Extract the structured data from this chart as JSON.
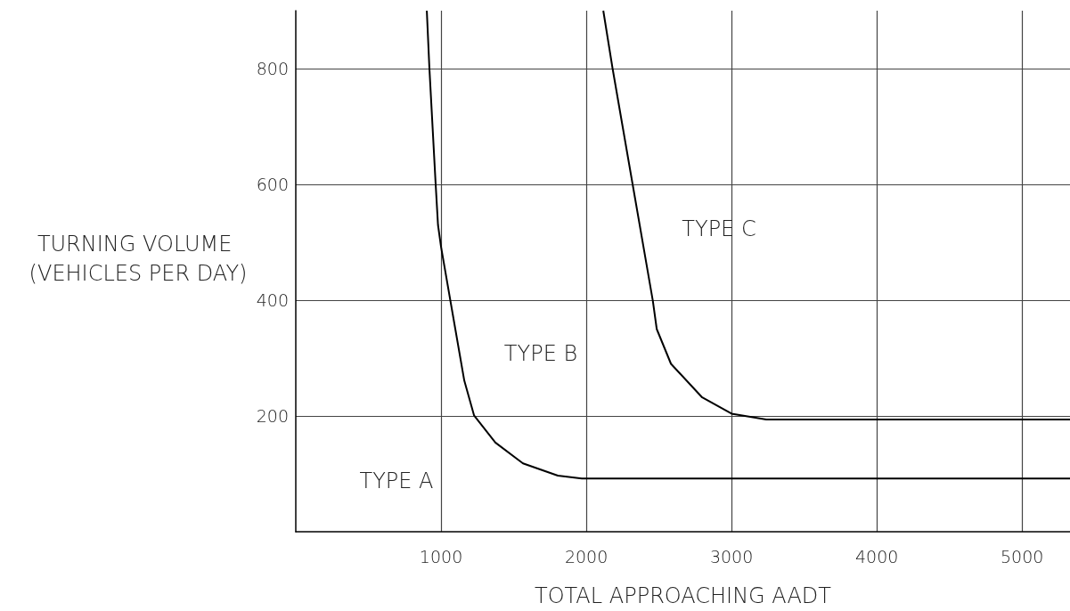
{
  "chart_data": {
    "type": "line",
    "xlabel": "TOTAL APPROACHING AADT",
    "ylabel": "TURNING VOLUME (VEHICLES PER DAY)",
    "xlim": [
      0,
      5330
    ],
    "ylim": [
      0,
      900
    ],
    "xticks": [
      1000,
      2000,
      3000,
      4000,
      5000
    ],
    "yticks": [
      200,
      400,
      600,
      800
    ],
    "grid": true,
    "legend": false,
    "marker": "none",
    "line_style": "solid",
    "series": [
      {
        "color": "#000000",
        "x": [
          902,
          920,
          963,
          979,
          1000,
          1160,
          1227,
          1374,
          1564,
          1804,
          1969,
          5330
        ],
        "values": [
          900,
          800,
          600,
          530,
          492,
          261,
          201,
          154,
          118,
          97,
          92,
          92
        ]
      },
      {
        "color": "#000000",
        "x": [
          2117,
          2181,
          2319,
          2458,
          2485,
          2583,
          2798,
          3000,
          3239,
          5330
        ],
        "values": [
          900,
          800,
          600,
          399,
          350,
          290,
          232,
          204,
          194,
          194
        ]
      }
    ],
    "annotations": [
      "TYPE A",
      "TYPE B",
      "TYPE C"
    ]
  }
}
